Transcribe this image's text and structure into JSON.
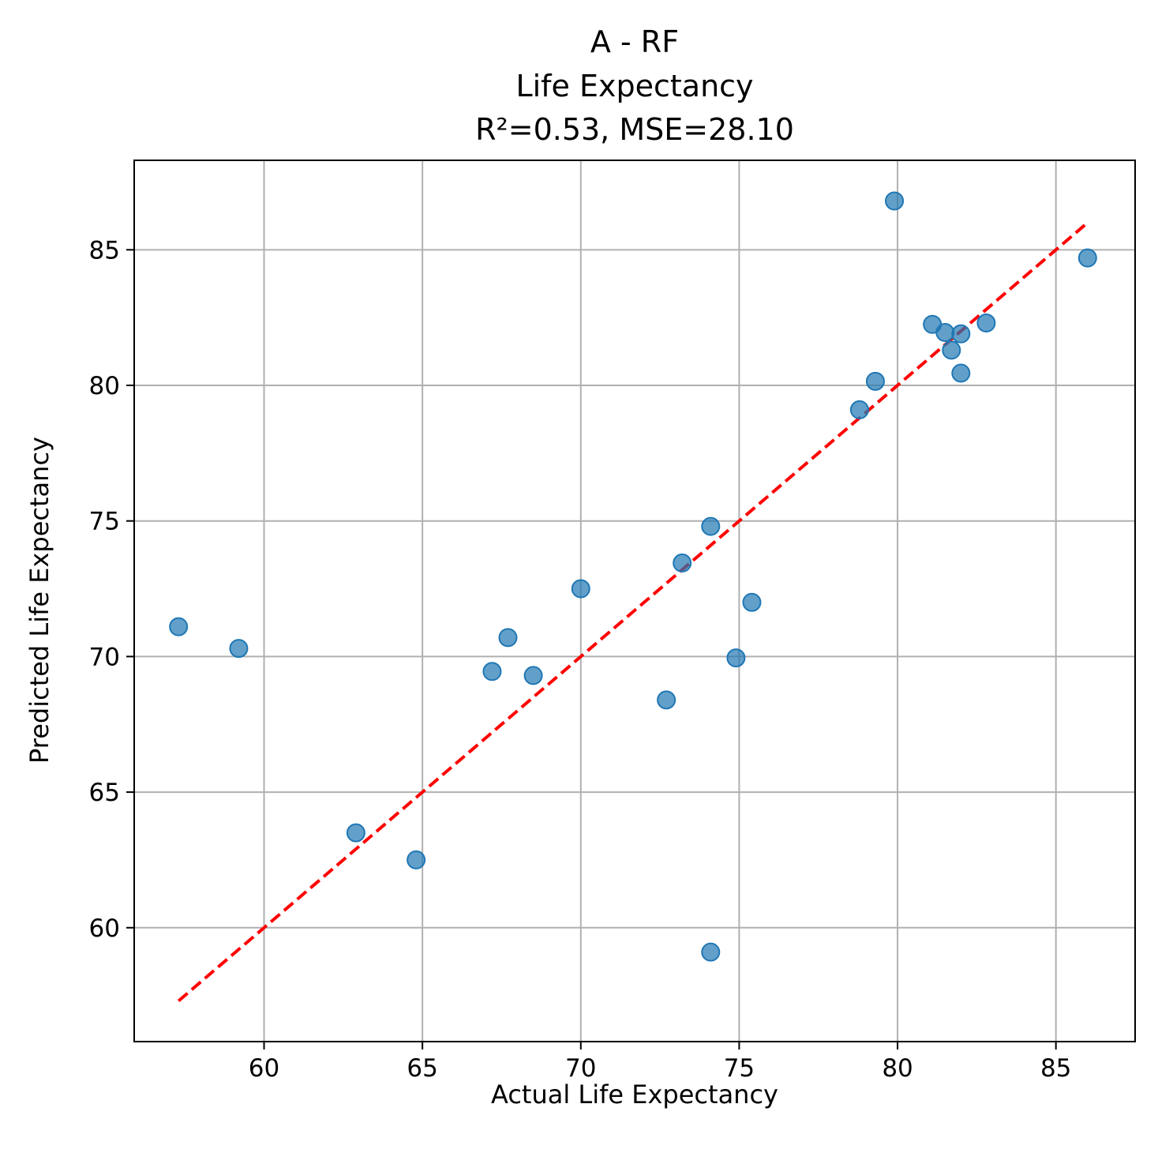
{
  "chart_data": {
    "type": "scatter",
    "title": [
      "A - RF",
      "Life Expectancy",
      "R²=0.53, MSE=28.10"
    ],
    "xlabel": "Actual Life Expectancy",
    "ylabel": "Predicted Life Expectancy",
    "xlim": [
      55.9,
      87.5
    ],
    "ylim": [
      55.8,
      88.3
    ],
    "xticks": [
      60,
      65,
      70,
      75,
      80,
      85
    ],
    "yticks": [
      60,
      65,
      70,
      75,
      80,
      85
    ],
    "grid": true,
    "points": [
      {
        "x": 57.3,
        "y": 71.1
      },
      {
        "x": 59.2,
        "y": 70.3
      },
      {
        "x": 62.9,
        "y": 63.5
      },
      {
        "x": 64.8,
        "y": 62.5
      },
      {
        "x": 67.2,
        "y": 69.45
      },
      {
        "x": 67.7,
        "y": 70.7
      },
      {
        "x": 68.5,
        "y": 69.3
      },
      {
        "x": 70.0,
        "y": 72.5
      },
      {
        "x": 72.7,
        "y": 68.4
      },
      {
        "x": 73.2,
        "y": 73.45
      },
      {
        "x": 74.1,
        "y": 74.8
      },
      {
        "x": 74.1,
        "y": 59.1
      },
      {
        "x": 74.9,
        "y": 69.95
      },
      {
        "x": 75.4,
        "y": 72.0
      },
      {
        "x": 78.8,
        "y": 79.1
      },
      {
        "x": 79.3,
        "y": 80.15
      },
      {
        "x": 79.9,
        "y": 86.8
      },
      {
        "x": 81.1,
        "y": 82.25
      },
      {
        "x": 81.5,
        "y": 81.95
      },
      {
        "x": 81.7,
        "y": 81.3
      },
      {
        "x": 82.0,
        "y": 81.9
      },
      {
        "x": 82.0,
        "y": 80.45
      },
      {
        "x": 82.8,
        "y": 82.3
      },
      {
        "x": 86.0,
        "y": 84.7
      }
    ],
    "reference_line": {
      "x": [
        57.3,
        86.0
      ],
      "y": [
        57.3,
        86.0
      ],
      "style": "dashed",
      "color": "#ff0000"
    },
    "point_color": "#1f77b4"
  }
}
